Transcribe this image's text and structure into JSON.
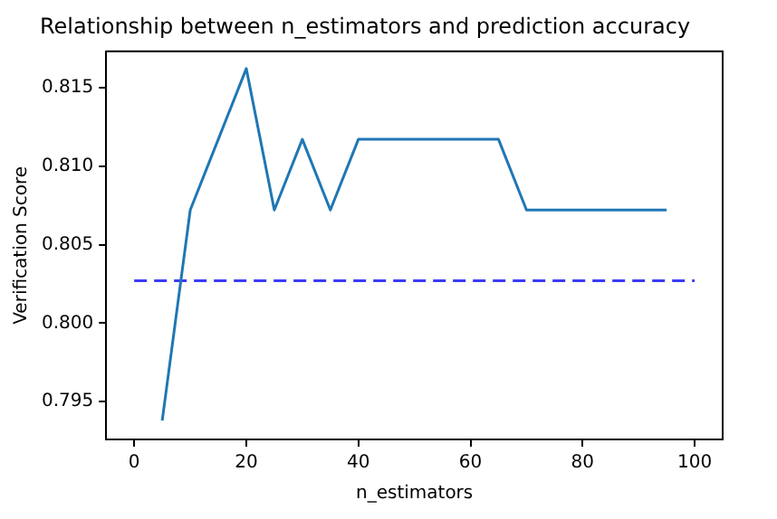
{
  "chart_data": {
    "type": "line",
    "title": "Relationship between n_estimators and prediction accuracy",
    "xlabel": "n_estimators",
    "ylabel": "Verification Score",
    "series": [
      {
        "x": [
          5,
          10,
          15,
          20,
          25,
          30,
          35,
          40,
          45,
          50,
          55,
          60,
          65,
          70,
          75,
          80,
          85,
          90,
          95
        ],
        "values": [
          0.7938,
          0.8072,
          0.8117,
          0.8162,
          0.8072,
          0.8117,
          0.8072,
          0.8117,
          0.8117,
          0.8117,
          0.8117,
          0.8117,
          0.8117,
          0.8072,
          0.8072,
          0.8072,
          0.8072,
          0.8072,
          0.8072
        ],
        "color": "#1f77b4",
        "line_style": "solid"
      },
      {
        "x": [
          0,
          100
        ],
        "values": [
          0.8027,
          0.8027
        ],
        "color": "#3a3af5",
        "line_style": "dashed"
      }
    ],
    "xlim": [
      -5,
      105
    ],
    "xticks": [
      0,
      20,
      40,
      60,
      80,
      100
    ],
    "ylim": [
      0.7926,
      0.8173
    ],
    "yticks": [
      0.795,
      {
        "value": 0.8,
        "label": "0.800"
      },
      0.805,
      {
        "value": 0.81,
        "label": "0.810"
      },
      0.815
    ],
    "grid": false,
    "legend": false,
    "marker": "none"
  }
}
